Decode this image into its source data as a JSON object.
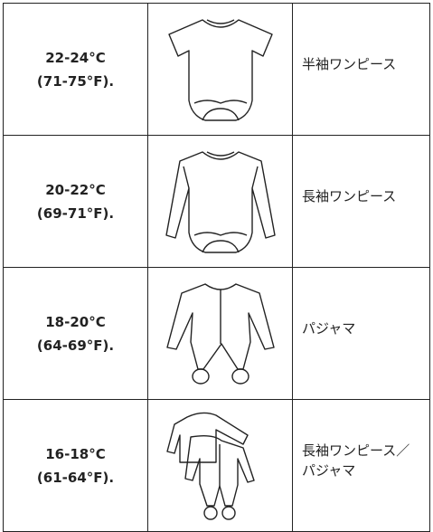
{
  "table": {
    "rows": [
      {
        "temp_c": "22-24°C",
        "temp_f": "(71-75°F).",
        "clothing": "半袖ワンピース"
      },
      {
        "temp_c": "20-22°C",
        "temp_f": "(69-71°F).",
        "clothing": "長袖ワンピース"
      },
      {
        "temp_c": "18-20°C",
        "temp_f": "(64-69°F).",
        "clothing": "パジャマ"
      },
      {
        "temp_c": "16-18°C",
        "temp_f": "(61-64°F).",
        "clothing": "長袖ワンピース／パジャマ"
      }
    ]
  }
}
